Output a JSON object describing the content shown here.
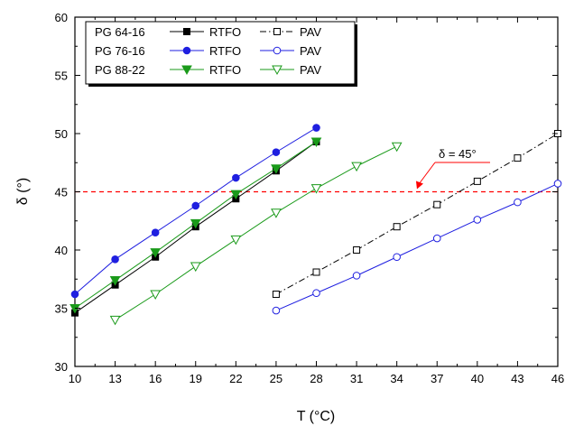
{
  "chart_data": {
    "type": "line",
    "xlabel": "T (°C)",
    "ylabel": "δ (°)",
    "xlim": [
      10,
      46
    ],
    "ylim": [
      30,
      60
    ],
    "xticks": [
      10,
      13,
      16,
      19,
      22,
      25,
      28,
      31,
      34,
      37,
      40,
      43,
      46
    ],
    "yticks": [
      30,
      35,
      40,
      45,
      50,
      55,
      60
    ],
    "grid": false,
    "legend_position": "top-left",
    "series": [
      {
        "name": "PG 64-16 RTFO",
        "binder": "PG 64-16",
        "condition": "RTFO",
        "color": "#000000",
        "line": "solid",
        "marker": "square-filled",
        "x": [
          10,
          13,
          16,
          19,
          22,
          25,
          28
        ],
        "y": [
          34.6,
          37.0,
          39.4,
          42.0,
          44.4,
          46.8,
          49.3
        ]
      },
      {
        "name": "PG 64-16 PAV",
        "binder": "PG 64-16",
        "condition": "PAV",
        "color": "#000000",
        "line": "dashdot",
        "marker": "square-open",
        "x": [
          25,
          28,
          31,
          34,
          37,
          40,
          43,
          46
        ],
        "y": [
          36.2,
          38.1,
          40.0,
          42.0,
          43.9,
          45.9,
          47.9,
          50.0
        ]
      },
      {
        "name": "PG 76-16 RTFO",
        "binder": "PG 76-16",
        "condition": "RTFO",
        "color": "#1f1fe0",
        "line": "solid",
        "marker": "circle-filled",
        "x": [
          10,
          13,
          16,
          19,
          22,
          25,
          28
        ],
        "y": [
          36.2,
          39.2,
          41.5,
          43.8,
          46.2,
          48.4,
          50.5
        ]
      },
      {
        "name": "PG 76-16 PAV",
        "binder": "PG 76-16",
        "condition": "PAV",
        "color": "#1f1fe0",
        "line": "solid",
        "marker": "circle-open",
        "x": [
          25,
          28,
          31,
          34,
          37,
          40,
          43,
          46
        ],
        "y": [
          34.8,
          36.3,
          37.8,
          39.4,
          41.0,
          42.6,
          44.1,
          45.7
        ]
      },
      {
        "name": "PG 88-22 RTFO",
        "binder": "PG 88-22",
        "condition": "RTFO",
        "color": "#1a9a1a",
        "line": "solid",
        "marker": "triangle-down-filled",
        "x": [
          10,
          13,
          16,
          19,
          22,
          25,
          28
        ],
        "y": [
          35.0,
          37.4,
          39.8,
          42.3,
          44.8,
          47.0,
          49.3
        ]
      },
      {
        "name": "PG 88-22 PAV",
        "binder": "PG 88-22",
        "condition": "PAV",
        "color": "#1a9a1a",
        "line": "solid",
        "marker": "triangle-down-open",
        "x": [
          13,
          16,
          19,
          22,
          25,
          28,
          31,
          34
        ],
        "y": [
          34.0,
          36.2,
          38.6,
          40.9,
          43.2,
          45.3,
          47.2,
          48.9
        ]
      }
    ],
    "reference_line": {
      "y": 45,
      "color": "#ff0000",
      "style": "dashed"
    },
    "annotation": {
      "text": "δ = 45°",
      "color": "#ff0000",
      "pointer_x": 35.5,
      "pointer_y": 45
    }
  },
  "legend": {
    "rows": [
      {
        "binder": "PG 64-16",
        "rtfo_label": "RTFO",
        "pav_label": "PAV",
        "color": "#000000"
      },
      {
        "binder": "PG 76-16",
        "rtfo_label": "RTFO",
        "pav_label": "PAV",
        "color": "#1f1fe0"
      },
      {
        "binder": "PG 88-22",
        "rtfo_label": "RTFO",
        "pav_label": "PAV",
        "color": "#1a9a1a"
      }
    ]
  }
}
